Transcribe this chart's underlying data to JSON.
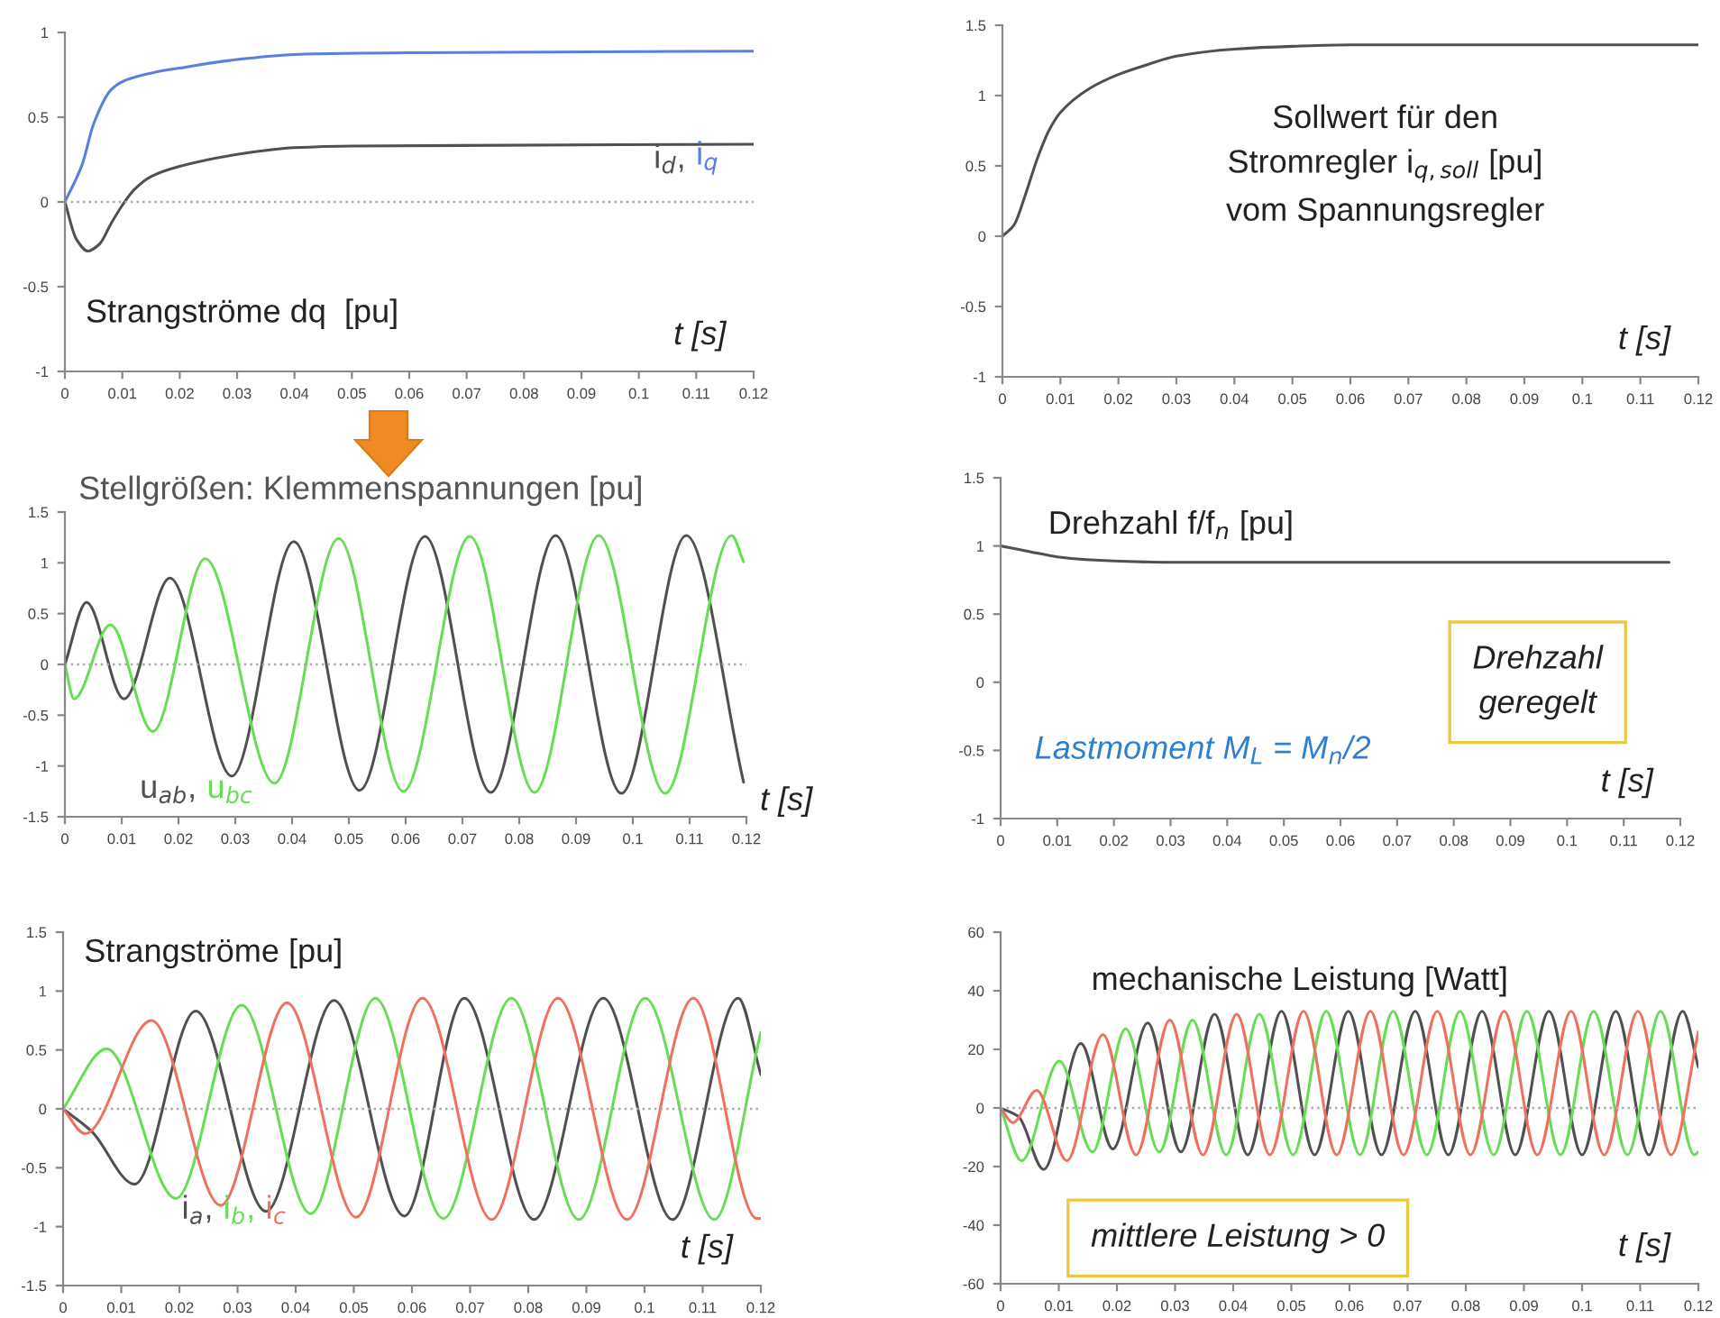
{
  "chart_data": [
    {
      "type": "line",
      "title": "Strangströme dq  [pu]",
      "xlabel": "t [s]",
      "xlim": [
        0,
        0.12
      ],
      "xticks": [
        0,
        0.01,
        0.02,
        0.03,
        0.04,
        0.05,
        0.06,
        0.07,
        0.08,
        0.09,
        0.1,
        0.11,
        0.12
      ],
      "ylim": [
        -1,
        1
      ],
      "yticks": [
        -1,
        -0.5,
        0,
        0.5,
        1
      ],
      "ref_lines": [
        {
          "axis": "y",
          "value": 0,
          "line_style": "dotted",
          "color": "#aaaaaa"
        }
      ],
      "series": [
        {
          "name": "i$_{d}$,",
          "color": "#505050",
          "x": [
            0,
            0.002,
            0.004,
            0.006,
            0.008,
            0.01,
            0.012,
            0.015,
            0.02,
            0.03,
            0.04,
            0.05,
            0.12
          ],
          "values": [
            0,
            -0.22,
            -0.29,
            -0.25,
            -0.13,
            -0.02,
            0.07,
            0.15,
            0.21,
            0.28,
            0.32,
            0.33,
            0.34
          ]
        },
        {
          "name": "i$_{q}$",
          "color": "#5a7fe0",
          "x": [
            0,
            0.003,
            0.005,
            0.008,
            0.01,
            0.015,
            0.02,
            0.03,
            0.04,
            0.06,
            0.12
          ],
          "values": [
            0,
            0.22,
            0.46,
            0.66,
            0.71,
            0.76,
            0.79,
            0.84,
            0.87,
            0.88,
            0.89
          ]
        }
      ]
    },
    {
      "type": "line",
      "xlabel": "t [s]",
      "xlim": [
        0,
        0.12
      ],
      "xticks": [
        0,
        0.01,
        0.02,
        0.03,
        0.04,
        0.05,
        0.06,
        0.07,
        0.08,
        0.09,
        0.1,
        0.11,
        0.12
      ],
      "ylim": [
        -1,
        1.5
      ],
      "yticks": [
        -1,
        -0.5,
        0,
        0.5,
        1,
        1.5
      ],
      "annotations": [
        "Sollwert für den\nStromregler i$_{q,soll}$ [pu]\nvom Spannungsregler"
      ],
      "series": [
        {
          "color": "#505050",
          "x": [
            0,
            0.002,
            0.004,
            0.006,
            0.008,
            0.01,
            0.015,
            0.02,
            0.025,
            0.03,
            0.04,
            0.05,
            0.06,
            0.12
          ],
          "values": [
            0,
            0.08,
            0.3,
            0.55,
            0.75,
            0.88,
            1.05,
            1.15,
            1.22,
            1.28,
            1.33,
            1.35,
            1.36,
            1.36
          ]
        }
      ]
    },
    {
      "type": "line",
      "title": "Stellgrößen: Klemmenspannungen [pu]",
      "xlabel": "t [s]",
      "xlim": [
        0,
        0.12
      ],
      "xticks": [
        0,
        0.01,
        0.02,
        0.03,
        0.04,
        0.05,
        0.06,
        0.07,
        0.08,
        0.09,
        0.1,
        0.11,
        0.12
      ],
      "ylim": [
        -1.5,
        1.5
      ],
      "yticks": [
        -1.5,
        -1,
        -0.5,
        0,
        0.5,
        1,
        1.5
      ],
      "ref_lines": [
        {
          "axis": "y",
          "value": 0,
          "line_style": "dotted",
          "color": "#aaaaaa"
        }
      ],
      "series": [
        {
          "name": "u$_{ab}$,",
          "color": "#505050",
          "x": [
            0,
            0.0038,
            0.0104,
            0.0185,
            0.0294,
            0.0403,
            0.0519,
            0.0634,
            0.075,
            0.0864,
            0.098,
            0.1094,
            0.1195
          ],
          "values": [
            0,
            0.61,
            -0.34,
            0.85,
            -1.1,
            1.21,
            -1.24,
            1.26,
            -1.26,
            1.27,
            -1.27,
            1.27,
            -1.16
          ]
        },
        {
          "name": "u$_{bc}$",
          "color": "#66dd55",
          "x": [
            0,
            0.0016,
            0.008,
            0.0155,
            0.0247,
            0.0369,
            0.0482,
            0.0596,
            0.0713,
            0.0827,
            0.094,
            0.1057,
            0.1174,
            0.1195
          ],
          "values": [
            0,
            -0.34,
            0.39,
            -0.66,
            1.04,
            -1.17,
            1.24,
            -1.25,
            1.26,
            -1.26,
            1.27,
            -1.27,
            1.27,
            1.01
          ]
        }
      ]
    },
    {
      "type": "line",
      "title": "Drehzahl f/f$_{n}$ [pu]",
      "xlabel": "t [s]",
      "xlim": [
        0,
        0.12
      ],
      "xticks": [
        0,
        0.01,
        0.02,
        0.03,
        0.04,
        0.05,
        0.06,
        0.07,
        0.08,
        0.09,
        0.1,
        0.11,
        0.12
      ],
      "ylim": [
        -1,
        1.5
      ],
      "yticks": [
        -1,
        -0.5,
        0,
        0.5,
        1,
        1.5
      ],
      "annotations": [
        "Drehzahl\ngeregelt",
        "Lastmoment M$_{L}$ = M$_{n}$/2"
      ],
      "series": [
        {
          "color": "#505050",
          "x": [
            0,
            0.005,
            0.01,
            0.015,
            0.02,
            0.03,
            0.118
          ],
          "values": [
            1.0,
            0.96,
            0.92,
            0.9,
            0.89,
            0.88,
            0.88
          ]
        }
      ]
    },
    {
      "type": "line",
      "title": "Strangströme [pu]",
      "xlabel": "t [s]",
      "xlim": [
        0,
        0.12
      ],
      "xticks": [
        0,
        0.01,
        0.02,
        0.03,
        0.04,
        0.05,
        0.06,
        0.07,
        0.08,
        0.09,
        0.1,
        0.11,
        0.12
      ],
      "ylim": [
        -1.5,
        1.5
      ],
      "yticks": [
        -1.5,
        -1,
        -0.5,
        0,
        0.5,
        1,
        1.5
      ],
      "ref_lines": [
        {
          "axis": "y",
          "value": 0,
          "line_style": "dotted",
          "color": "#aaaaaa"
        }
      ],
      "series": [
        {
          "name": "i$_{a}$,",
          "color": "#505050",
          "x": [
            0,
            0.0049,
            0.0123,
            0.0228,
            0.0349,
            0.0466,
            0.0587,
            0.069,
            0.081,
            0.0929,
            0.1048,
            0.1161,
            0.12
          ],
          "values": [
            0,
            -0.19,
            -0.64,
            0.83,
            -0.87,
            0.92,
            -0.91,
            0.94,
            -0.94,
            0.94,
            -0.94,
            0.94,
            0.29
          ]
        },
        {
          "name": "i$_{b}$,",
          "color": "#66dd55",
          "x": [
            0,
            0.0075,
            0.0194,
            0.0307,
            0.0426,
            0.0537,
            0.0654,
            0.0771,
            0.0887,
            0.1001,
            0.112,
            0.12
          ],
          "values": [
            0,
            0.51,
            -0.76,
            0.88,
            -0.89,
            0.94,
            -0.93,
            0.94,
            -0.94,
            0.94,
            -0.94,
            0.65
          ]
        },
        {
          "name": "i$_{c}$",
          "color": "#f07060",
          "x": [
            0,
            0.0038,
            0.0152,
            0.0271,
            0.0385,
            0.0504,
            0.0618,
            0.0737,
            0.0851,
            0.097,
            0.1084,
            0.1193,
            0.12
          ],
          "values": [
            0,
            -0.21,
            0.75,
            -0.82,
            0.9,
            -0.92,
            0.94,
            -0.94,
            0.94,
            -0.94,
            0.94,
            -0.93,
            -0.93
          ]
        }
      ]
    },
    {
      "type": "line",
      "title": "mechanische Leistung [Watt]",
      "xlabel": "t [s]",
      "xlim": [
        0,
        0.12
      ],
      "xticks": [
        0,
        0.01,
        0.02,
        0.03,
        0.04,
        0.05,
        0.06,
        0.07,
        0.08,
        0.09,
        0.1,
        0.11,
        0.12
      ],
      "ylim": [
        -60,
        60
      ],
      "yticks": [
        -60,
        -40,
        -20,
        0,
        20,
        40,
        60
      ],
      "ref_lines": [
        {
          "axis": "y",
          "value": 0,
          "line_style": "dotted",
          "color": "#aaaaaa"
        }
      ],
      "annotations": [
        "mittlere Leistung > 0"
      ],
      "series": [
        {
          "color": "#505050",
          "x": [
            0,
            0.0031,
            0.0074,
            0.0138,
            0.0193,
            0.0253,
            0.031,
            0.0368,
            0.0425,
            0.0483,
            0.054,
            0.0598,
            0.0655,
            0.0713,
            0.077,
            0.0828,
            0.0885,
            0.0943,
            0.1,
            0.1058,
            0.1115,
            0.1173,
            0.12
          ],
          "values": [
            0,
            -3,
            -21,
            22,
            -14,
            29,
            -15,
            32,
            -16,
            33,
            -16,
            33,
            -16,
            33,
            -16,
            33,
            -16,
            33,
            -16,
            33,
            -16,
            33,
            14
          ]
        },
        {
          "color": "#66dd55",
          "x": [
            0,
            0.0036,
            0.0101,
            0.0158,
            0.0215,
            0.0273,
            0.033,
            0.0388,
            0.0445,
            0.0503,
            0.056,
            0.0618,
            0.0675,
            0.0733,
            0.079,
            0.0848,
            0.0905,
            0.0963,
            0.102,
            0.1078,
            0.1135,
            0.1193,
            0.12
          ],
          "values": [
            0,
            -18,
            16,
            -15,
            27,
            -15,
            30,
            -16,
            32,
            -16,
            33,
            -16,
            33,
            -16,
            33,
            -16,
            33,
            -16,
            33,
            -16,
            33,
            -16,
            -15
          ]
        },
        {
          "color": "#f07060",
          "x": [
            0,
            0.0021,
            0.0062,
            0.0114,
            0.0176,
            0.0233,
            0.0291,
            0.0348,
            0.0406,
            0.0463,
            0.0521,
            0.0578,
            0.0636,
            0.0693,
            0.0751,
            0.0808,
            0.0866,
            0.0923,
            0.0981,
            0.1038,
            0.1096,
            0.1153,
            0.12
          ],
          "values": [
            0,
            -5,
            6,
            -18,
            25,
            -16,
            30,
            -16,
            32,
            -16,
            33,
            -16,
            33,
            -16,
            33,
            -16,
            33,
            -16,
            33,
            -16,
            33,
            -16,
            26
          ]
        }
      ]
    }
  ]
}
